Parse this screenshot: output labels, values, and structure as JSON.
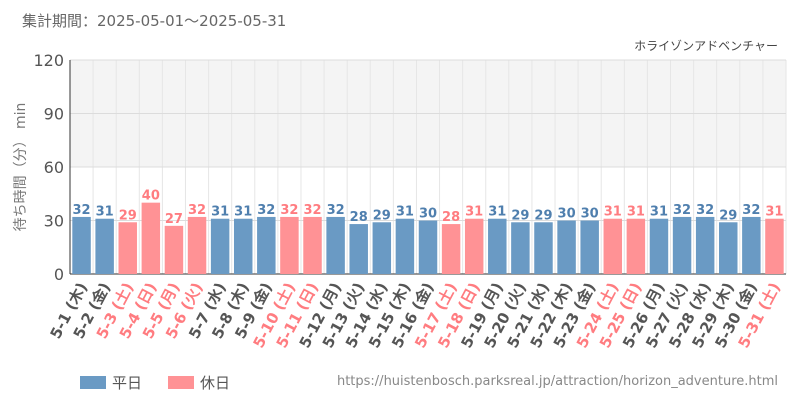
{
  "header": {
    "period": "集計期間：2025-05-01～2025-05-31",
    "chart_title": "ホライゾンアドベンチャー"
  },
  "legend": {
    "weekday_label": "平日",
    "holiday_label": "休日"
  },
  "footer": {
    "url": "https://huistenbosch.parksreal.jp/attraction/horizon_adventure.html"
  },
  "colors": {
    "weekday": "#6a9ac4",
    "holiday": "#ff9295",
    "weekday_text": "#4f7fae",
    "holiday_text": "#ff7c80",
    "axis_text": "#555555",
    "upper_band": "#f4f4f4"
  },
  "chart_data": {
    "type": "bar",
    "ylabel": "待ち時間（分） min",
    "ylim": [
      0,
      120
    ],
    "yticks": [
      0,
      30,
      60,
      90,
      120
    ],
    "grid": true,
    "legend_position": "bottom-left",
    "categories": [
      "5-1 (木)",
      "5-2 (金)",
      "5-3 (土)",
      "5-4 (日)",
      "5-5 (月)",
      "5-6 (火)",
      "5-7 (水)",
      "5-8 (木)",
      "5-9 (金)",
      "5-10 (土)",
      "5-11 (日)",
      "5-12 (月)",
      "5-13 (火)",
      "5-14 (水)",
      "5-15 (木)",
      "5-16 (金)",
      "5-17 (土)",
      "5-18 (日)",
      "5-19 (月)",
      "5-20 (火)",
      "5-21 (水)",
      "5-22 (木)",
      "5-23 (金)",
      "5-24 (土)",
      "5-25 (日)",
      "5-26 (月)",
      "5-27 (火)",
      "5-28 (水)",
      "5-29 (木)",
      "5-30 (金)",
      "5-31 (土)"
    ],
    "values": [
      32,
      31,
      29,
      40,
      27,
      32,
      31,
      31,
      32,
      32,
      32,
      32,
      28,
      29,
      31,
      30,
      28,
      31,
      31,
      29,
      29,
      30,
      30,
      31,
      31,
      31,
      32,
      32,
      29,
      32,
      31
    ],
    "day_type": [
      "平日",
      "平日",
      "休日",
      "休日",
      "休日",
      "休日",
      "平日",
      "平日",
      "平日",
      "休日",
      "休日",
      "平日",
      "平日",
      "平日",
      "平日",
      "平日",
      "休日",
      "休日",
      "平日",
      "平日",
      "平日",
      "平日",
      "平日",
      "休日",
      "休日",
      "平日",
      "平日",
      "平日",
      "平日",
      "平日",
      "休日"
    ]
  }
}
